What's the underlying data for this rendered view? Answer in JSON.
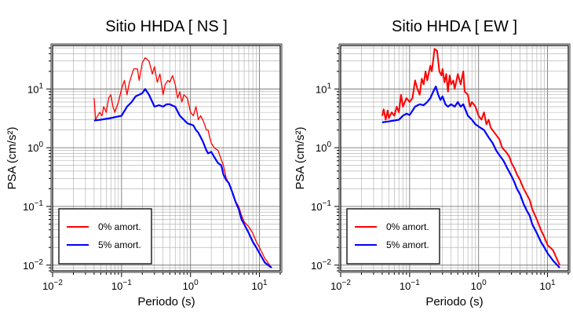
{
  "chart_data": [
    {
      "type": "line",
      "title": "Sitio HHDA [ NS ]",
      "xlabel": "Periodo (s)",
      "ylabel": "PSA (cm/s²)",
      "x_scale": "log",
      "y_scale": "log",
      "xlim": [
        0.01,
        20
      ],
      "ylim": [
        0.008,
        55
      ],
      "x_ticks": [
        "10−2",
        "10−1",
        "100",
        "101"
      ],
      "y_ticks": [
        "10−2",
        "10−1",
        "100",
        "101"
      ],
      "grid": true,
      "legend_position": "bottom-left",
      "series": [
        {
          "name": "0% amort.",
          "color": "#ff0000",
          "points": [
            [
              0.04,
              7
            ],
            [
              0.042,
              3
            ],
            [
              0.048,
              4
            ],
            [
              0.052,
              3.5
            ],
            [
              0.055,
              5
            ],
            [
              0.06,
              4
            ],
            [
              0.065,
              7
            ],
            [
              0.07,
              8
            ],
            [
              0.075,
              5
            ],
            [
              0.08,
              4
            ],
            [
              0.09,
              6
            ],
            [
              0.1,
              10
            ],
            [
              0.11,
              14
            ],
            [
              0.12,
              8
            ],
            [
              0.13,
              13
            ],
            [
              0.15,
              22
            ],
            [
              0.17,
              22
            ],
            [
              0.18,
              14
            ],
            [
              0.2,
              28
            ],
            [
              0.22,
              34
            ],
            [
              0.25,
              30
            ],
            [
              0.28,
              18
            ],
            [
              0.3,
              24
            ],
            [
              0.33,
              13
            ],
            [
              0.36,
              18
            ],
            [
              0.4,
              8
            ],
            [
              0.43,
              12
            ],
            [
              0.47,
              14
            ],
            [
              0.5,
              13
            ],
            [
              0.55,
              17
            ],
            [
              0.6,
              12
            ],
            [
              0.65,
              7
            ],
            [
              0.7,
              9
            ],
            [
              0.75,
              6
            ],
            [
              0.8,
              8
            ],
            [
              0.9,
              7
            ],
            [
              1.0,
              4
            ],
            [
              1.1,
              3.5
            ],
            [
              1.2,
              5
            ],
            [
              1.3,
              3
            ],
            [
              1.4,
              3.5
            ],
            [
              1.5,
              3
            ],
            [
              1.6,
              2.5
            ],
            [
              1.7,
              2
            ],
            [
              1.8,
              2
            ],
            [
              1.9,
              1.5
            ],
            [
              2.0,
              1.2
            ],
            [
              2.2,
              1.0
            ],
            [
              2.5,
              0.9
            ],
            [
              2.7,
              0.7
            ],
            [
              3.0,
              0.5
            ],
            [
              3.3,
              0.3
            ],
            [
              3.6,
              0.25
            ],
            [
              4.0,
              0.18
            ],
            [
              4.5,
              0.12
            ],
            [
              5.0,
              0.1
            ],
            [
              5.5,
              0.07
            ],
            [
              6.0,
              0.055
            ],
            [
              7.0,
              0.045
            ],
            [
              8.0,
              0.035
            ],
            [
              9.0,
              0.025
            ],
            [
              10,
              0.02
            ],
            [
              12,
              0.013
            ],
            [
              15,
              0.009
            ]
          ]
        },
        {
          "name": "5% amort.",
          "color": "#0000ff",
          "points": [
            [
              0.04,
              2.9
            ],
            [
              0.05,
              3
            ],
            [
              0.07,
              3.2
            ],
            [
              0.1,
              3.5
            ],
            [
              0.12,
              5
            ],
            [
              0.14,
              6
            ],
            [
              0.16,
              7.5
            ],
            [
              0.18,
              8
            ],
            [
              0.2,
              8.5
            ],
            [
              0.22,
              10
            ],
            [
              0.25,
              8
            ],
            [
              0.28,
              6
            ],
            [
              0.3,
              5
            ],
            [
              0.35,
              5.3
            ],
            [
              0.4,
              5
            ],
            [
              0.45,
              5.5
            ],
            [
              0.5,
              5.5
            ],
            [
              0.55,
              5.2
            ],
            [
              0.6,
              5
            ],
            [
              0.7,
              3.5
            ],
            [
              0.8,
              3
            ],
            [
              0.9,
              2.6
            ],
            [
              1.0,
              2.5
            ],
            [
              1.1,
              2.4
            ],
            [
              1.2,
              2
            ],
            [
              1.3,
              1.8
            ],
            [
              1.5,
              1.3
            ],
            [
              1.7,
              0.9
            ],
            [
              1.8,
              0.8
            ],
            [
              2.0,
              0.85
            ],
            [
              2.2,
              0.7
            ],
            [
              2.5,
              0.55
            ],
            [
              2.8,
              0.5
            ],
            [
              3.0,
              0.35
            ],
            [
              3.3,
              0.28
            ],
            [
              3.6,
              0.25
            ],
            [
              4.0,
              0.18
            ],
            [
              4.5,
              0.12
            ],
            [
              5.0,
              0.09
            ],
            [
              5.5,
              0.06
            ],
            [
              6.0,
              0.05
            ],
            [
              7.0,
              0.035
            ],
            [
              8.0,
              0.025
            ],
            [
              9.0,
              0.02
            ],
            [
              10,
              0.016
            ],
            [
              12,
              0.011
            ],
            [
              15,
              0.009
            ]
          ]
        }
      ]
    },
    {
      "type": "line",
      "title": "Sitio HHDA [ EW ]",
      "xlabel": "Periodo (s)",
      "ylabel": "PSA (cm/s²)",
      "x_scale": "log",
      "y_scale": "log",
      "xlim": [
        0.01,
        20
      ],
      "ylim": [
        0.008,
        55
      ],
      "x_ticks": [
        "10−2",
        "10−1",
        "100",
        "101"
      ],
      "y_ticks": [
        "10−2",
        "10−1",
        "100",
        "101"
      ],
      "grid": true,
      "legend_position": "bottom-left",
      "series": [
        {
          "name": "0% amort.",
          "color": "#ff0000",
          "points": [
            [
              0.04,
              3.5
            ],
            [
              0.042,
              4.5
            ],
            [
              0.045,
              3
            ],
            [
              0.048,
              4.3
            ],
            [
              0.05,
              3.2
            ],
            [
              0.055,
              4
            ],
            [
              0.06,
              3.5
            ],
            [
              0.065,
              5
            ],
            [
              0.07,
              4
            ],
            [
              0.075,
              8
            ],
            [
              0.08,
              5
            ],
            [
              0.085,
              6
            ],
            [
              0.09,
              7
            ],
            [
              0.1,
              6
            ],
            [
              0.11,
              7
            ],
            [
              0.12,
              14
            ],
            [
              0.13,
              10
            ],
            [
              0.14,
              8
            ],
            [
              0.15,
              15
            ],
            [
              0.16,
              12
            ],
            [
              0.17,
              20
            ],
            [
              0.18,
              14
            ],
            [
              0.2,
              25
            ],
            [
              0.21,
              20
            ],
            [
              0.23,
              48
            ],
            [
              0.25,
              45
            ],
            [
              0.27,
              20
            ],
            [
              0.29,
              17
            ],
            [
              0.3,
              22
            ],
            [
              0.32,
              13
            ],
            [
              0.34,
              18
            ],
            [
              0.36,
              9
            ],
            [
              0.38,
              17
            ],
            [
              0.4,
              12
            ],
            [
              0.43,
              14
            ],
            [
              0.45,
              10
            ],
            [
              0.5,
              18
            ],
            [
              0.55,
              12
            ],
            [
              0.6,
              20
            ],
            [
              0.63,
              9
            ],
            [
              0.7,
              8
            ],
            [
              0.75,
              5
            ],
            [
              0.8,
              6
            ],
            [
              0.9,
              5
            ],
            [
              1.0,
              3.5
            ],
            [
              1.1,
              3
            ],
            [
              1.2,
              4
            ],
            [
              1.3,
              2.5
            ],
            [
              1.4,
              3
            ],
            [
              1.5,
              2.2
            ],
            [
              1.7,
              1.8
            ],
            [
              2.0,
              1.4
            ],
            [
              2.2,
              1.0
            ],
            [
              2.5,
              0.85
            ],
            [
              2.8,
              0.7
            ],
            [
              3.0,
              0.55
            ],
            [
              3.3,
              0.45
            ],
            [
              3.6,
              0.35
            ],
            [
              4.0,
              0.28
            ],
            [
              4.5,
              0.2
            ],
            [
              5.0,
              0.16
            ],
            [
              5.5,
              0.13
            ],
            [
              6.0,
              0.09
            ],
            [
              7.0,
              0.06
            ],
            [
              8.0,
              0.04
            ],
            [
              9.0,
              0.03
            ],
            [
              10,
              0.022
            ],
            [
              12,
              0.018
            ],
            [
              15,
              0.01
            ]
          ]
        },
        {
          "name": "5% amort.",
          "color": "#0000ff",
          "points": [
            [
              0.04,
              2.7
            ],
            [
              0.05,
              2.8
            ],
            [
              0.07,
              3
            ],
            [
              0.08,
              3.5
            ],
            [
              0.09,
              3.8
            ],
            [
              0.1,
              3.6
            ],
            [
              0.12,
              5
            ],
            [
              0.14,
              5.5
            ],
            [
              0.16,
              5.3
            ],
            [
              0.18,
              6
            ],
            [
              0.2,
              7
            ],
            [
              0.22,
              9
            ],
            [
              0.24,
              11
            ],
            [
              0.26,
              8
            ],
            [
              0.28,
              6.5
            ],
            [
              0.3,
              7.5
            ],
            [
              0.33,
              5.5
            ],
            [
              0.36,
              5
            ],
            [
              0.4,
              5.5
            ],
            [
              0.45,
              5
            ],
            [
              0.5,
              6
            ],
            [
              0.55,
              5
            ],
            [
              0.6,
              5.5
            ],
            [
              0.7,
              3.5
            ],
            [
              0.8,
              3
            ],
            [
              0.9,
              2.5
            ],
            [
              1.0,
              2.3
            ],
            [
              1.2,
              2
            ],
            [
              1.4,
              1.5
            ],
            [
              1.6,
              1.2
            ],
            [
              1.8,
              0.9
            ],
            [
              2.0,
              0.75
            ],
            [
              2.3,
              0.6
            ],
            [
              2.6,
              0.45
            ],
            [
              3.0,
              0.33
            ],
            [
              3.3,
              0.26
            ],
            [
              3.6,
              0.2
            ],
            [
              4.0,
              0.16
            ],
            [
              4.5,
              0.11
            ],
            [
              5.0,
              0.085
            ],
            [
              5.5,
              0.07
            ],
            [
              6.0,
              0.05
            ],
            [
              7.0,
              0.035
            ],
            [
              8.0,
              0.025
            ],
            [
              9.0,
              0.02
            ],
            [
              10,
              0.016
            ],
            [
              12,
              0.012
            ],
            [
              15,
              0.009
            ]
          ]
        }
      ]
    }
  ]
}
